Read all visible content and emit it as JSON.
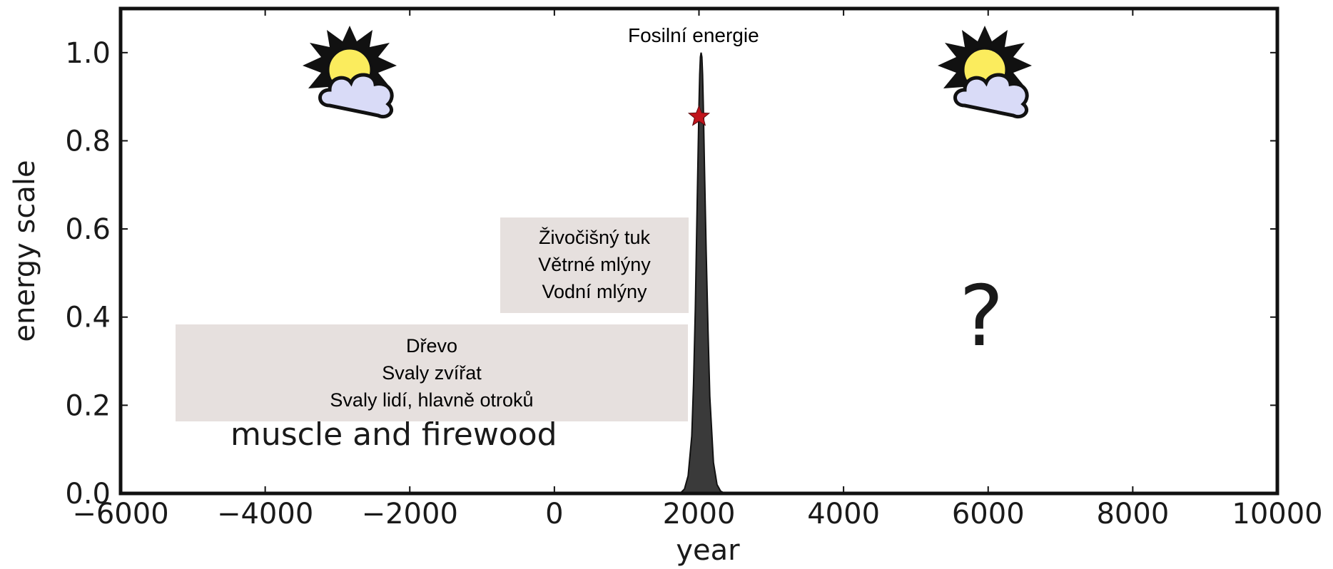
{
  "chart_data": {
    "type": "area",
    "title": "",
    "xlabel": "year",
    "ylabel": "energy scale",
    "xlim": [
      -6000,
      10000
    ],
    "ylim": [
      0.0,
      1.1
    ],
    "x_ticks": [
      -6000,
      -4000,
      -2000,
      0,
      2000,
      4000,
      6000,
      8000,
      10000
    ],
    "x_tick_labels": [
      "−6000",
      "−4000",
      "−2000",
      "0",
      "2000",
      "4000",
      "6000",
      "8000",
      "10000"
    ],
    "y_ticks": [
      0.0,
      0.2,
      0.4,
      0.6,
      0.8,
      1.0
    ],
    "y_tick_labels": [
      "0.0",
      "0.2",
      "0.4",
      "0.6",
      "0.8",
      "1.0"
    ],
    "grid": false,
    "series": [
      {
        "x": [
          1700,
          1750,
          1800,
          1850,
          1900,
          1925,
          1950,
          1975,
          2000,
          2010,
          2020,
          2030,
          2040,
          2050,
          2060,
          2075,
          2100,
          2125,
          2150,
          2200,
          2250,
          2300,
          2350,
          2400
        ],
        "values": [
          0.0,
          0.002,
          0.01,
          0.04,
          0.13,
          0.25,
          0.42,
          0.66,
          0.88,
          0.95,
          0.99,
          1.0,
          0.99,
          0.95,
          0.88,
          0.75,
          0.55,
          0.37,
          0.22,
          0.07,
          0.02,
          0.005,
          0.001,
          0.0
        ],
        "color": "#3a3a3a"
      }
    ],
    "marker": {
      "x": 2000,
      "y": 0.855,
      "shape": "star",
      "color": "#c0141c"
    },
    "annotations": {
      "peak_label": "Fosilní energie",
      "box_upper": [
        "Živočišný tuk",
        "Větrné mlýny",
        "Vodní mlýny"
      ],
      "box_lower": [
        "Dřevo",
        "Svaly zvířat",
        "Svaly lidí, hlavně otroků"
      ],
      "muscle_label": "muscle and firewood",
      "question": "?"
    },
    "icons": [
      "sun-cloud-icon",
      "sun-cloud-icon"
    ]
  }
}
